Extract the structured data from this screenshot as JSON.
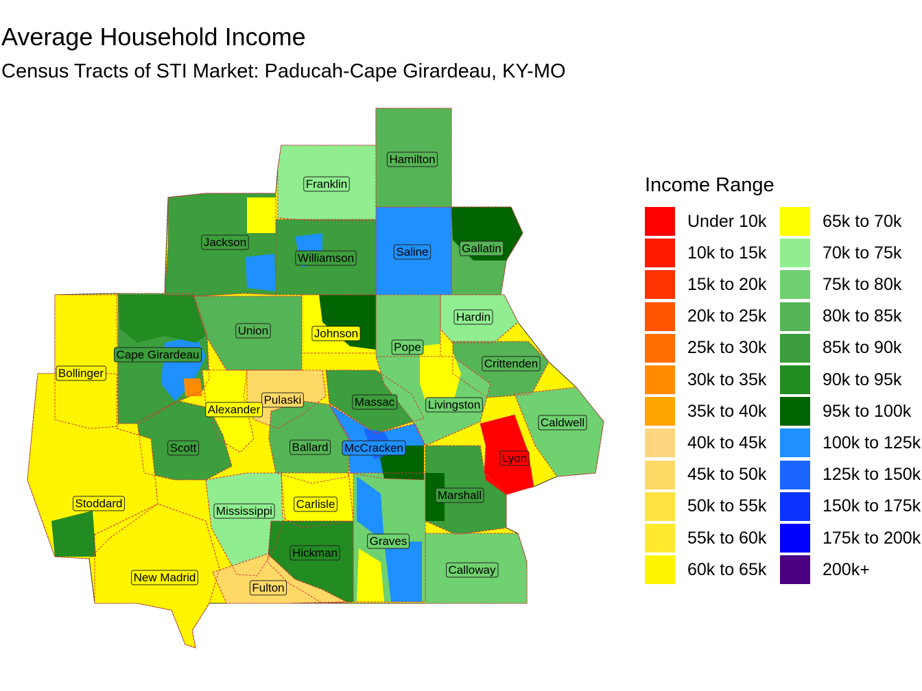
{
  "title": "Average Household Income",
  "subtitle": "Census Tracts of STI Market: Paducah-Cape Girardeau, KY-MO",
  "legend": {
    "title": "Income Range",
    "items": [
      {
        "label": "Under 10k",
        "color": "#FF0000"
      },
      {
        "label": "10k to 15k",
        "color": "#FF1A00"
      },
      {
        "label": "15k to 20k",
        "color": "#FF3300"
      },
      {
        "label": "20k to 25k",
        "color": "#FF5500"
      },
      {
        "label": "25k to 30k",
        "color": "#FF6E00"
      },
      {
        "label": "30k to 35k",
        "color": "#FF8C00"
      },
      {
        "label": "35k to 40k",
        "color": "#FFA500"
      },
      {
        "label": "40k to 45k",
        "color": "#FFD580"
      },
      {
        "label": "45k to 50k",
        "color": "#FFD966"
      },
      {
        "label": "50k to 55k",
        "color": "#FFE340"
      },
      {
        "label": "55k to 60k",
        "color": "#FFEA30"
      },
      {
        "label": "60k to 65k",
        "color": "#FFF500"
      },
      {
        "label": "65k to 70k",
        "color": "#FFFF00"
      },
      {
        "label": "70k to 75k",
        "color": "#90EE90"
      },
      {
        "label": "75k to 80k",
        "color": "#6FD16F"
      },
      {
        "label": "80k to 85k",
        "color": "#55B455"
      },
      {
        "label": "85k to 90k",
        "color": "#3C9E3C"
      },
      {
        "label": "90k to 95k",
        "color": "#228B22"
      },
      {
        "label": "95k to 100k",
        "color": "#006400"
      },
      {
        "label": "100k to 125k",
        "color": "#1E90FF"
      },
      {
        "label": "125k to 150k",
        "color": "#1A66FF"
      },
      {
        "label": "150k to 175k",
        "color": "#0A33FF"
      },
      {
        "label": "175k to 200k",
        "color": "#0000FF"
      },
      {
        "label": "200k+",
        "color": "#4B0082"
      }
    ]
  },
  "counties": [
    {
      "name": "Hamilton",
      "fill": "#55B455"
    },
    {
      "name": "Franklin",
      "fill": "#90EE90"
    },
    {
      "name": "Jackson",
      "fill": "#3C9E3C"
    },
    {
      "name": "Williamson",
      "fill": "#3C9E3C"
    },
    {
      "name": "Saline",
      "fill": "#1E90FF"
    },
    {
      "name": "Gallatin",
      "fill": "#55B455"
    },
    {
      "name": "Union",
      "fill": "#55B455"
    },
    {
      "name": "Johnson",
      "fill": "#FFFF00"
    },
    {
      "name": "Hardin",
      "fill": "#90EE90"
    },
    {
      "name": "Pope",
      "fill": "#6FD16F"
    },
    {
      "name": "Cape Girardeau",
      "fill": "#3C9E3C"
    },
    {
      "name": "Crittenden",
      "fill": "#55B455"
    },
    {
      "name": "Bollinger",
      "fill": "#FFF500"
    },
    {
      "name": "Pulaski",
      "fill": "#FFD966"
    },
    {
      "name": "Massac",
      "fill": "#3C9E3C"
    },
    {
      "name": "Livingston",
      "fill": "#6FD16F"
    },
    {
      "name": "Alexander",
      "fill": "#FFFF00"
    },
    {
      "name": "Caldwell",
      "fill": "#6FD16F"
    },
    {
      "name": "Scott",
      "fill": "#3C9E3C"
    },
    {
      "name": "Ballard",
      "fill": "#55B455"
    },
    {
      "name": "McCracken",
      "fill": "#1E90FF"
    },
    {
      "name": "Lyon",
      "fill": "#FF0000"
    },
    {
      "name": "Stoddard",
      "fill": "#FFF500"
    },
    {
      "name": "Mississippi",
      "fill": "#90EE90"
    },
    {
      "name": "Carlisle",
      "fill": "#FFFF00"
    },
    {
      "name": "Marshall",
      "fill": "#3C9E3C"
    },
    {
      "name": "Hickman",
      "fill": "#228B22"
    },
    {
      "name": "Graves",
      "fill": "#6FD16F"
    },
    {
      "name": "New Madrid",
      "fill": "#FFF500"
    },
    {
      "name": "Calloway",
      "fill": "#6FD16F"
    },
    {
      "name": "Fulton",
      "fill": "#FFD966"
    }
  ]
}
